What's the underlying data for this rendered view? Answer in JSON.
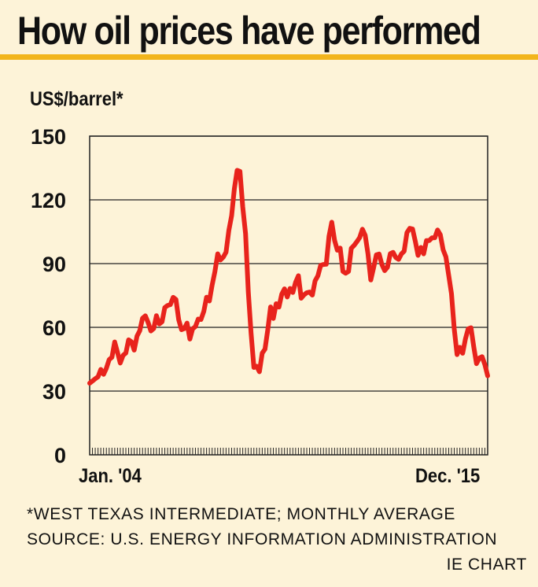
{
  "header": {
    "title": "How oil prices have performed"
  },
  "footer": {
    "note": "*WEST TEXAS INTERMEDIATE; MONTHLY AVERAGE",
    "source": "SOURCE: U.S. ENERGY INFORMATION ADMINISTRATION",
    "credit": "IE CHART"
  },
  "colors": {
    "line": "#e8231c",
    "background": "#fdf3d8",
    "accent_bar": "#f2b51c"
  },
  "chart_data": {
    "type": "line",
    "title": "How oil prices have performed",
    "ylabel": "US$/barrel*",
    "xlabel": "",
    "ylim": [
      0,
      150
    ],
    "yticks": [
      0,
      30,
      60,
      90,
      120,
      150
    ],
    "x_start_label": "Jan. '04",
    "x_end_label": "Dec. '15",
    "grid": true,
    "series": [
      {
        "values": [
          33.7,
          34.7,
          35.8,
          36.7,
          40.2,
          37.9,
          40.7,
          44.8,
          45.9,
          53.1,
          48.2,
          43.2,
          46.8,
          47.9,
          54.1,
          53.2,
          49.3,
          55.9,
          58.4,
          64.3,
          65.4,
          62.3,
          58.3,
          59.4,
          65.5,
          61.6,
          62.6,
          69.3,
          70.3,
          70.7,
          74.1,
          73.1,
          63.6,
          58.9,
          59.4,
          62.0,
          54.5,
          59.3,
          60.4,
          63.9,
          63.7,
          67.5,
          74.2,
          72.4,
          79.9,
          86.2,
          94.6,
          91.7,
          93.0,
          95.4,
          105.5,
          112.6,
          125.4,
          133.9,
          133.4,
          116.7,
          104.1,
          76.6,
          57.3,
          41.1,
          41.7,
          39.1,
          47.9,
          49.7,
          59.0,
          69.6,
          64.2,
          71.1,
          69.5,
          75.6,
          78.1,
          74.3,
          78.3,
          76.4,
          81.2,
          84.3,
          73.7,
          75.3,
          76.3,
          76.6,
          75.2,
          81.9,
          84.3,
          89.2,
          89.6,
          89.7,
          102.9,
          109.5,
          100.9,
          96.3,
          97.3,
          86.3,
          85.5,
          86.3,
          97.2,
          98.6,
          100.3,
          102.2,
          106.2,
          103.3,
          94.7,
          82.3,
          87.9,
          94.1,
          94.5,
          89.6,
          86.7,
          88.3,
          94.7,
          95.3,
          92.9,
          92.0,
          94.5,
          95.8,
          104.6,
          106.6,
          106.3,
          100.5,
          93.9,
          97.6,
          94.6,
          100.8,
          100.8,
          102.1,
          102.2,
          105.8,
          103.6,
          96.5,
          93.2,
          84.4,
          75.8,
          59.3,
          47.2,
          50.6,
          47.8,
          54.5,
          59.3,
          59.8,
          50.9,
          42.9,
          45.5,
          46.2,
          42.4,
          37.2
        ]
      }
    ]
  }
}
